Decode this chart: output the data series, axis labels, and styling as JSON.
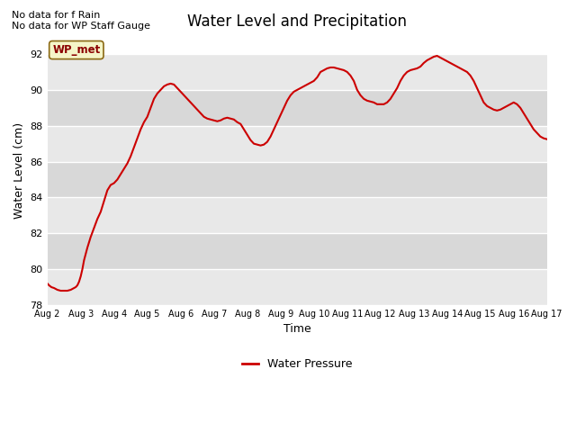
{
  "title": "Water Level and Precipitation",
  "xlabel": "Time",
  "ylabel": "Water Level (cm)",
  "ylim": [
    78,
    93
  ],
  "xlim": [
    0,
    15
  ],
  "line_color": "#cc0000",
  "bg_color": "#e8e8e8",
  "bg_color2": "#d8d8d8",
  "legend_label": "Water Pressure",
  "no_data_texts": [
    "No data for f Rain",
    "No data for WP Staff Gauge"
  ],
  "wp_met_label": "WP_met",
  "x_tick_labels": [
    "Aug 2",
    "Aug 3",
    "Aug 4",
    "Aug 5",
    "Aug 6",
    "Aug 7",
    "Aug 8",
    "Aug 9",
    "Aug 10",
    "Aug 11",
    "Aug 12",
    "Aug 13",
    "Aug 14",
    "Aug 15",
    "Aug 16",
    "Aug 17"
  ],
  "x_ticks": [
    0,
    1,
    2,
    3,
    4,
    5,
    6,
    7,
    8,
    9,
    10,
    11,
    12,
    13,
    14,
    15
  ],
  "y_ticks": [
    78,
    80,
    82,
    84,
    86,
    88,
    90,
    92
  ],
  "water_level_x": [
    0.0,
    0.05,
    0.12,
    0.2,
    0.3,
    0.4,
    0.5,
    0.6,
    0.7,
    0.75,
    0.8,
    0.85,
    0.9,
    0.95,
    1.0,
    1.05,
    1.1,
    1.2,
    1.3,
    1.4,
    1.5,
    1.6,
    1.7,
    1.8,
    1.9,
    2.0,
    2.1,
    2.2,
    2.3,
    2.4,
    2.5,
    2.6,
    2.7,
    2.8,
    2.9,
    3.0,
    3.1,
    3.2,
    3.3,
    3.4,
    3.5,
    3.6,
    3.7,
    3.8,
    3.85,
    3.9,
    3.95,
    4.0,
    4.1,
    4.2,
    4.3,
    4.4,
    4.5,
    4.6,
    4.7,
    4.8,
    4.9,
    5.0,
    5.1,
    5.2,
    5.3,
    5.4,
    5.5,
    5.6,
    5.7,
    5.8,
    5.9,
    6.0,
    6.1,
    6.2,
    6.3,
    6.4,
    6.5,
    6.6,
    6.7,
    6.8,
    6.9,
    7.0,
    7.1,
    7.2,
    7.3,
    7.4,
    7.5,
    7.6,
    7.7,
    7.8,
    7.85,
    7.9,
    7.95,
    8.0,
    8.1,
    8.2,
    8.3,
    8.4,
    8.5,
    8.6,
    8.7,
    8.8,
    8.9,
    9.0,
    9.1,
    9.2,
    9.3,
    9.4,
    9.5,
    9.6,
    9.7,
    9.8,
    9.9,
    10.0,
    10.1,
    10.2,
    10.3,
    10.4,
    10.5,
    10.6,
    10.7,
    10.8,
    10.9,
    11.0,
    11.1,
    11.2,
    11.3,
    11.4,
    11.5,
    11.6,
    11.7,
    11.8,
    11.9,
    12.0,
    12.1,
    12.2,
    12.3,
    12.4,
    12.5,
    12.6,
    12.7,
    12.8,
    12.9,
    13.0,
    13.1,
    13.2,
    13.3,
    13.4,
    13.5,
    13.6,
    13.7,
    13.8,
    13.9,
    14.0,
    14.1,
    14.2,
    14.3,
    14.4,
    14.5,
    14.6,
    14.7,
    14.8,
    14.9,
    15.0
  ],
  "water_level_y": [
    79.2,
    79.1,
    79.0,
    78.95,
    78.85,
    78.8,
    78.8,
    78.8,
    78.85,
    78.9,
    78.95,
    79.0,
    79.1,
    79.3,
    79.6,
    80.0,
    80.5,
    81.2,
    81.8,
    82.3,
    82.8,
    83.2,
    83.8,
    84.4,
    84.7,
    84.8,
    85.0,
    85.3,
    85.6,
    85.9,
    86.3,
    86.8,
    87.3,
    87.8,
    88.2,
    88.5,
    89.0,
    89.5,
    89.8,
    90.0,
    90.2,
    90.3,
    90.35,
    90.3,
    90.2,
    90.1,
    90.0,
    89.9,
    89.7,
    89.5,
    89.3,
    89.1,
    88.9,
    88.7,
    88.5,
    88.4,
    88.35,
    88.3,
    88.25,
    88.3,
    88.4,
    88.45,
    88.4,
    88.35,
    88.2,
    88.1,
    87.8,
    87.5,
    87.2,
    87.0,
    86.95,
    86.9,
    86.95,
    87.1,
    87.4,
    87.8,
    88.2,
    88.6,
    89.0,
    89.4,
    89.7,
    89.9,
    90.0,
    90.1,
    90.2,
    90.3,
    90.35,
    90.4,
    90.45,
    90.5,
    90.7,
    91.0,
    91.1,
    91.2,
    91.25,
    91.25,
    91.2,
    91.15,
    91.1,
    91.0,
    90.8,
    90.5,
    90.0,
    89.7,
    89.5,
    89.4,
    89.35,
    89.3,
    89.2,
    89.2,
    89.2,
    89.3,
    89.5,
    89.8,
    90.1,
    90.5,
    90.8,
    91.0,
    91.1,
    91.15,
    91.2,
    91.3,
    91.5,
    91.65,
    91.75,
    91.85,
    91.9,
    91.8,
    91.7,
    91.6,
    91.5,
    91.4,
    91.3,
    91.2,
    91.1,
    91.0,
    90.8,
    90.5,
    90.1,
    89.7,
    89.3,
    89.1,
    89.0,
    88.9,
    88.85,
    88.9,
    89.0,
    89.1,
    89.2,
    89.3,
    89.2,
    89.0,
    88.7,
    88.4,
    88.1,
    87.8,
    87.6,
    87.4,
    87.3,
    87.25
  ]
}
